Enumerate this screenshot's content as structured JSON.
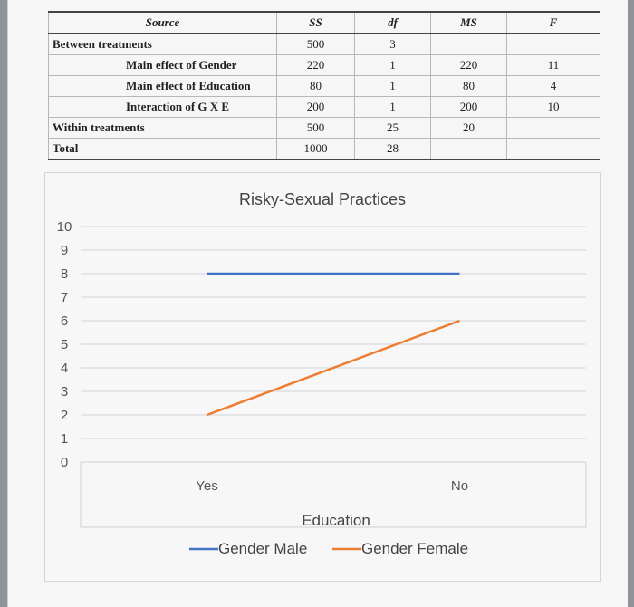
{
  "table": {
    "headers": [
      "Source",
      "SS",
      "df",
      "MS",
      "F"
    ],
    "rows": [
      {
        "source": "Between treatments",
        "ss": "500",
        "df": "3",
        "ms": "",
        "f": "",
        "indent": "top"
      },
      {
        "source": "Main effect of Gender",
        "ss": "220",
        "df": "1",
        "ms": "220",
        "f": "11",
        "indent": "sub"
      },
      {
        "source": "Main effect of Education",
        "ss": "80",
        "df": "1",
        "ms": "80",
        "f": "4",
        "indent": "sub"
      },
      {
        "source": "Interaction of G X E",
        "ss": "200",
        "df": "1",
        "ms": "200",
        "f": "10",
        "indent": "sub"
      },
      {
        "source": "Within treatments",
        "ss": "500",
        "df": "25",
        "ms": "20",
        "f": "",
        "indent": "top"
      },
      {
        "source": "Total",
        "ss": "1000",
        "df": "28",
        "ms": "",
        "f": "",
        "indent": "top"
      }
    ]
  },
  "chart_data": {
    "type": "line",
    "title": "Risky-Sexual Practices",
    "xlabel": "Education",
    "ylabel": "",
    "categories": [
      "Yes",
      "No"
    ],
    "ylim": [
      0,
      10
    ],
    "yticks": [
      0,
      1,
      2,
      3,
      4,
      5,
      6,
      7,
      8,
      9,
      10
    ],
    "grid": true,
    "legend_position": "bottom",
    "series": [
      {
        "name": "Gender Male",
        "values": [
          8,
          8
        ],
        "color": "#4472C4"
      },
      {
        "name": "Gender Female",
        "values": [
          2,
          6
        ],
        "color": "#ED7D31"
      }
    ]
  }
}
